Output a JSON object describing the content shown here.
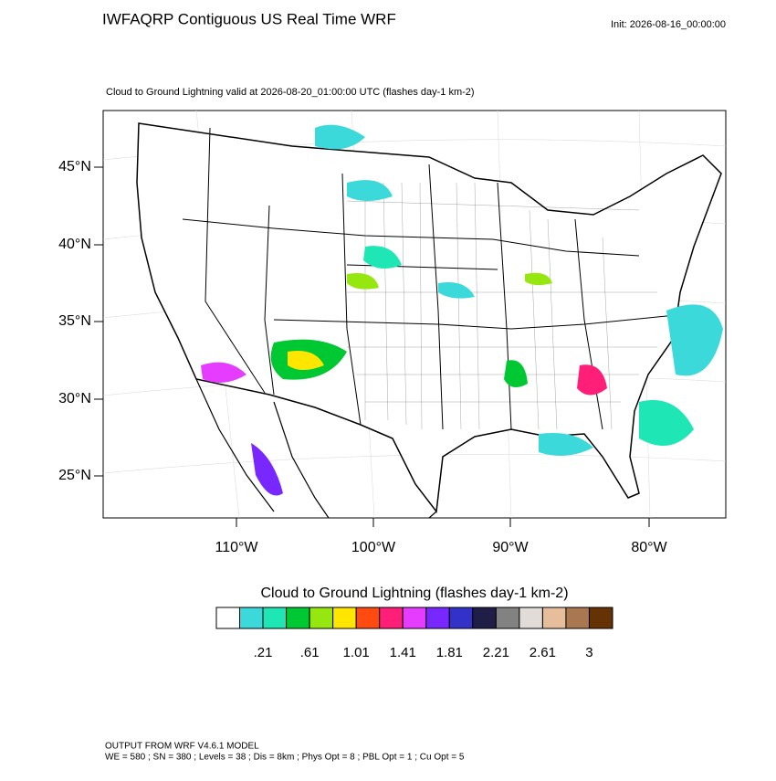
{
  "header": {
    "title": "IWFAQRP Contiguous US Real Time WRF",
    "init": "Init: 2026-08-16_00:00:00"
  },
  "map": {
    "subtitle": "Cloud to Ground Lightning valid at 2026-08-20_01:00:00 UTC   (flashes day-1 km-2)",
    "lat_labels": [
      "45°N",
      "40°N",
      "35°N",
      "30°N",
      "25°N"
    ],
    "lon_labels": [
      "110°W",
      "100°W",
      "90°W",
      "80°W"
    ]
  },
  "colorbar": {
    "title": "Cloud to Ground Lightning  (flashes day-1 km-2)",
    "colors": [
      "#ffffff",
      "#3cd9db",
      "#1ee6b4",
      "#00c832",
      "#96e60f",
      "#ffe600",
      "#ff4b0f",
      "#ff1e78",
      "#e63cff",
      "#7828ff",
      "#3232c8",
      "#1e1e46",
      "#828282",
      "#e1dcd7",
      "#e6be9b",
      "#aa7850",
      "#643205"
    ],
    "labels": [
      ".21",
      ".61",
      "1.01",
      "1.41",
      "1.81",
      "2.21",
      "2.61",
      "3"
    ]
  },
  "footer": {
    "line1": "OUTPUT FROM WRF V4.6.1 MODEL",
    "line2": "WE = 580 ; SN = 380 ; Levels = 38 ; Dis = 8km ; Phys Opt = 8 ; PBL Opt = 1 ; Cu Opt = 5"
  }
}
